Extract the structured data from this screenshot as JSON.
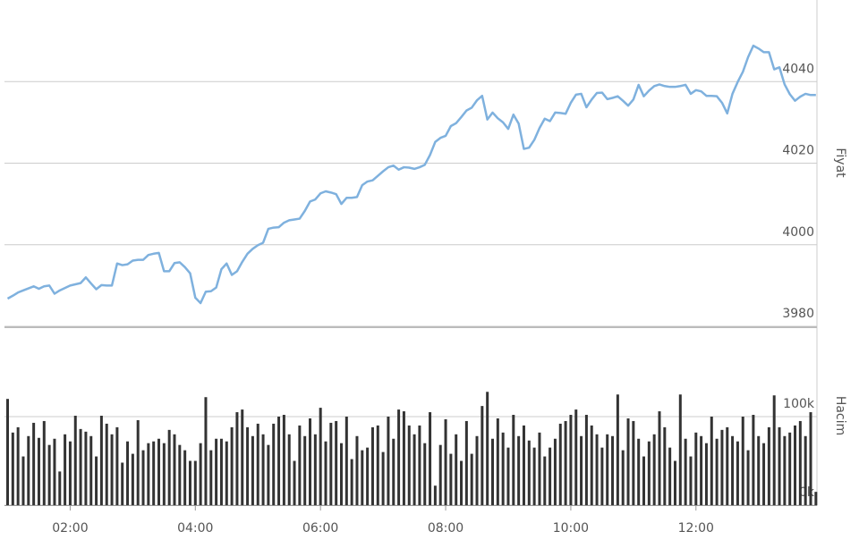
{
  "chart_data": [
    {
      "type": "line",
      "axis_title": "Fiyat",
      "color": "#7fb1de",
      "x": [
        "01:00",
        "01:05",
        "01:10",
        "01:15",
        "01:20",
        "01:25",
        "01:30",
        "01:35",
        "01:40",
        "01:45",
        "01:50",
        "01:55",
        "02:00",
        "02:05",
        "02:10",
        "02:15",
        "02:20",
        "02:25",
        "02:30",
        "02:35",
        "02:40",
        "02:45",
        "02:50",
        "02:55",
        "03:00",
        "03:05",
        "03:10",
        "03:15",
        "03:20",
        "03:25",
        "03:30",
        "03:35",
        "03:40",
        "03:45",
        "03:50",
        "03:55",
        "04:00",
        "04:05",
        "04:10",
        "04:15",
        "04:20",
        "04:25",
        "04:30",
        "04:35",
        "04:40",
        "04:45",
        "04:50",
        "04:55",
        "05:00",
        "05:05",
        "05:10",
        "05:15",
        "05:20",
        "05:25",
        "05:30",
        "05:35",
        "05:40",
        "05:45",
        "05:50",
        "05:55",
        "06:00",
        "06:05",
        "06:10",
        "06:15",
        "06:20",
        "06:25",
        "06:30",
        "06:35",
        "06:40",
        "06:45",
        "06:50",
        "06:55",
        "07:00",
        "07:05",
        "07:10",
        "07:15",
        "07:20",
        "07:25",
        "07:30",
        "07:35",
        "07:40",
        "07:45",
        "07:50",
        "07:55",
        "08:00",
        "08:05",
        "08:10",
        "08:15",
        "08:20",
        "08:25",
        "08:30",
        "08:35",
        "08:40",
        "08:45",
        "08:50",
        "08:55",
        "09:00",
        "09:05",
        "09:10",
        "09:15",
        "09:20",
        "09:25",
        "09:30",
        "09:35",
        "09:40",
        "09:45",
        "09:50",
        "09:55",
        "10:00",
        "10:05",
        "10:10",
        "10:15",
        "10:20",
        "10:25",
        "10:30",
        "10:35",
        "10:40",
        "10:45",
        "10:50",
        "10:55",
        "11:00",
        "11:05",
        "11:10",
        "11:15",
        "11:20",
        "11:25",
        "11:30",
        "11:35",
        "11:40",
        "11:45",
        "11:50",
        "11:55",
        "12:00",
        "12:05",
        "12:10",
        "12:15",
        "12:20",
        "12:25",
        "12:30",
        "12:35",
        "12:40",
        "12:45",
        "12:50",
        "12:55",
        "13:00",
        "13:05",
        "13:10",
        "13:15",
        "13:20",
        "13:25",
        "13:30",
        "13:35",
        "13:40",
        "13:45",
        "13:50",
        "13:55"
      ],
      "values": [
        3986.8,
        3987.5,
        3988.3,
        3988.8,
        3989.3,
        3989.8,
        3989.2,
        3989.8,
        3990.0,
        3988.0,
        3988.8,
        3989.4,
        3990.0,
        3990.3,
        3990.6,
        3992.0,
        3990.5,
        3989.1,
        3990.1,
        3990.0,
        3990.0,
        3995.4,
        3995.0,
        3995.2,
        3996.1,
        3996.3,
        3996.3,
        3997.5,
        3997.8,
        3998.0,
        3993.5,
        3993.5,
        3995.5,
        3995.7,
        3994.5,
        3993.0,
        3987.0,
        3985.7,
        3988.5,
        3988.6,
        3989.5,
        3994.0,
        3995.4,
        3992.6,
        3993.5,
        3995.8,
        3997.8,
        3999.0,
        3999.9,
        4000.5,
        4003.9,
        4004.2,
        4004.3,
        4005.4,
        4006.0,
        4006.2,
        4006.4,
        4008.3,
        4010.6,
        4011.1,
        4012.6,
        4013.1,
        4012.8,
        4012.4,
        4010.0,
        4011.5,
        4011.5,
        4011.7,
        4014.6,
        4015.5,
        4015.8,
        4016.9,
        4018.0,
        4019.0,
        4019.4,
        4018.4,
        4019.0,
        4018.9,
        4018.6,
        4019.0,
        4019.6,
        4022.0,
        4025.2,
        4026.2,
        4026.7,
        4029.1,
        4029.8,
        4031.3,
        4032.9,
        4033.6,
        4035.4,
        4036.5,
        4030.7,
        4032.4,
        4031.0,
        4030.0,
        4028.4,
        4031.9,
        4029.7,
        4023.5,
        4023.8,
        4025.7,
        4028.6,
        4030.9,
        4030.3,
        4032.4,
        4032.3,
        4032.1,
        4034.8,
        4036.8,
        4037.0,
        4033.7,
        4035.6,
        4037.2,
        4037.3,
        4035.7,
        4036.0,
        4036.4,
        4035.3,
        4034.1,
        4035.6,
        4039.2,
        4036.4,
        4037.8,
        4038.9,
        4039.3,
        4038.9,
        4038.7,
        4038.7,
        4038.9,
        4039.2,
        4037.0,
        4037.9,
        4037.6,
        4036.5,
        4036.5,
        4036.4,
        4034.8,
        4032.2,
        4037.0,
        4039.9,
        4042.4,
        4046.0,
        4048.8,
        4048.1,
        4047.2,
        4047.2,
        4043.0,
        4043.5,
        4039.3,
        4036.9,
        4035.3,
        4036.3,
        4037.0,
        4036.7,
        4036.7
      ],
      "xlim": [
        "00:57",
        "13:56"
      ],
      "ylim": [
        3980,
        4060
      ],
      "yticks": [
        3980,
        4000,
        4020,
        4040
      ],
      "grid": true
    },
    {
      "type": "bar",
      "axis_title": "Hacim",
      "color": "#333333",
      "x": [
        "01:00",
        "01:05",
        "01:10",
        "01:15",
        "01:20",
        "01:25",
        "01:30",
        "01:35",
        "01:40",
        "01:45",
        "01:50",
        "01:55",
        "02:00",
        "02:05",
        "02:10",
        "02:15",
        "02:20",
        "02:25",
        "02:30",
        "02:35",
        "02:40",
        "02:45",
        "02:50",
        "02:55",
        "03:00",
        "03:05",
        "03:10",
        "03:15",
        "03:20",
        "03:25",
        "03:30",
        "03:35",
        "03:40",
        "03:45",
        "03:50",
        "03:55",
        "04:00",
        "04:05",
        "04:10",
        "04:15",
        "04:20",
        "04:25",
        "04:30",
        "04:35",
        "04:40",
        "04:45",
        "04:50",
        "04:55",
        "05:00",
        "05:05",
        "05:10",
        "05:15",
        "05:20",
        "05:25",
        "05:30",
        "05:35",
        "05:40",
        "05:45",
        "05:50",
        "05:55",
        "06:00",
        "06:05",
        "06:10",
        "06:15",
        "06:20",
        "06:25",
        "06:30",
        "06:35",
        "06:40",
        "06:45",
        "06:50",
        "06:55",
        "07:00",
        "07:05",
        "07:10",
        "07:15",
        "07:20",
        "07:25",
        "07:30",
        "07:35",
        "07:40",
        "07:45",
        "07:50",
        "07:55",
        "08:00",
        "08:05",
        "08:10",
        "08:15",
        "08:20",
        "08:25",
        "08:30",
        "08:35",
        "08:40",
        "08:45",
        "08:50",
        "08:55",
        "09:00",
        "09:05",
        "09:10",
        "09:15",
        "09:20",
        "09:25",
        "09:30",
        "09:35",
        "09:40",
        "09:45",
        "09:50",
        "09:55",
        "10:00",
        "10:05",
        "10:10",
        "10:15",
        "10:20",
        "10:25",
        "10:30",
        "10:35",
        "10:40",
        "10:45",
        "10:50",
        "10:55",
        "11:00",
        "11:05",
        "11:10",
        "11:15",
        "11:20",
        "11:25",
        "11:30",
        "11:35",
        "11:40",
        "11:45",
        "11:50",
        "11:55",
        "12:00",
        "12:05",
        "12:10",
        "12:15",
        "12:20",
        "12:25",
        "12:30",
        "12:35",
        "12:40",
        "12:45",
        "12:50",
        "12:55",
        "13:00",
        "13:05",
        "13:10",
        "13:15",
        "13:20",
        "13:25",
        "13:30",
        "13:35",
        "13:40",
        "13:45",
        "13:50",
        "13:55"
      ],
      "values": [
        120,
        82,
        88,
        55,
        78,
        93,
        76,
        95,
        68,
        75,
        38,
        80,
        72,
        101,
        86,
        83,
        78,
        55,
        101,
        92,
        80,
        88,
        48,
        72,
        58,
        96,
        62,
        70,
        72,
        75,
        70,
        85,
        80,
        68,
        62,
        50,
        50,
        70,
        122,
        62,
        75,
        75,
        72,
        88,
        105,
        108,
        88,
        78,
        92,
        80,
        68,
        92,
        100,
        102,
        80,
        50,
        90,
        78,
        98,
        80,
        110,
        72,
        93,
        95,
        70,
        100,
        52,
        78,
        62,
        65,
        88,
        90,
        60,
        100,
        75,
        108,
        106,
        90,
        80,
        90,
        70,
        105,
        22,
        68,
        97,
        58,
        80,
        50,
        95,
        58,
        78,
        112,
        128,
        75,
        98,
        82,
        65,
        102,
        78,
        90,
        73,
        65,
        82,
        55,
        65,
        75,
        92,
        95,
        102,
        108,
        78,
        102,
        90,
        80,
        65,
        80,
        78,
        125,
        62,
        98,
        95,
        75,
        55,
        72,
        80,
        106,
        88,
        65,
        50,
        125,
        75,
        55,
        82,
        78,
        70,
        100,
        75,
        85,
        88,
        78,
        72,
        100,
        62,
        102,
        78,
        70,
        88,
        124,
        88,
        78,
        82,
        90,
        95,
        78,
        105,
        15
      ],
      "xlim": [
        "00:57",
        "13:56"
      ],
      "xticks": [
        "02:00",
        "04:00",
        "06:00",
        "08:00",
        "10:00",
        "12:00"
      ],
      "ylim": [
        0,
        200
      ],
      "yticks": [
        {
          "value": 0,
          "label": "0k"
        },
        {
          "value": 100,
          "label": "100k"
        }
      ],
      "grid": true
    }
  ]
}
